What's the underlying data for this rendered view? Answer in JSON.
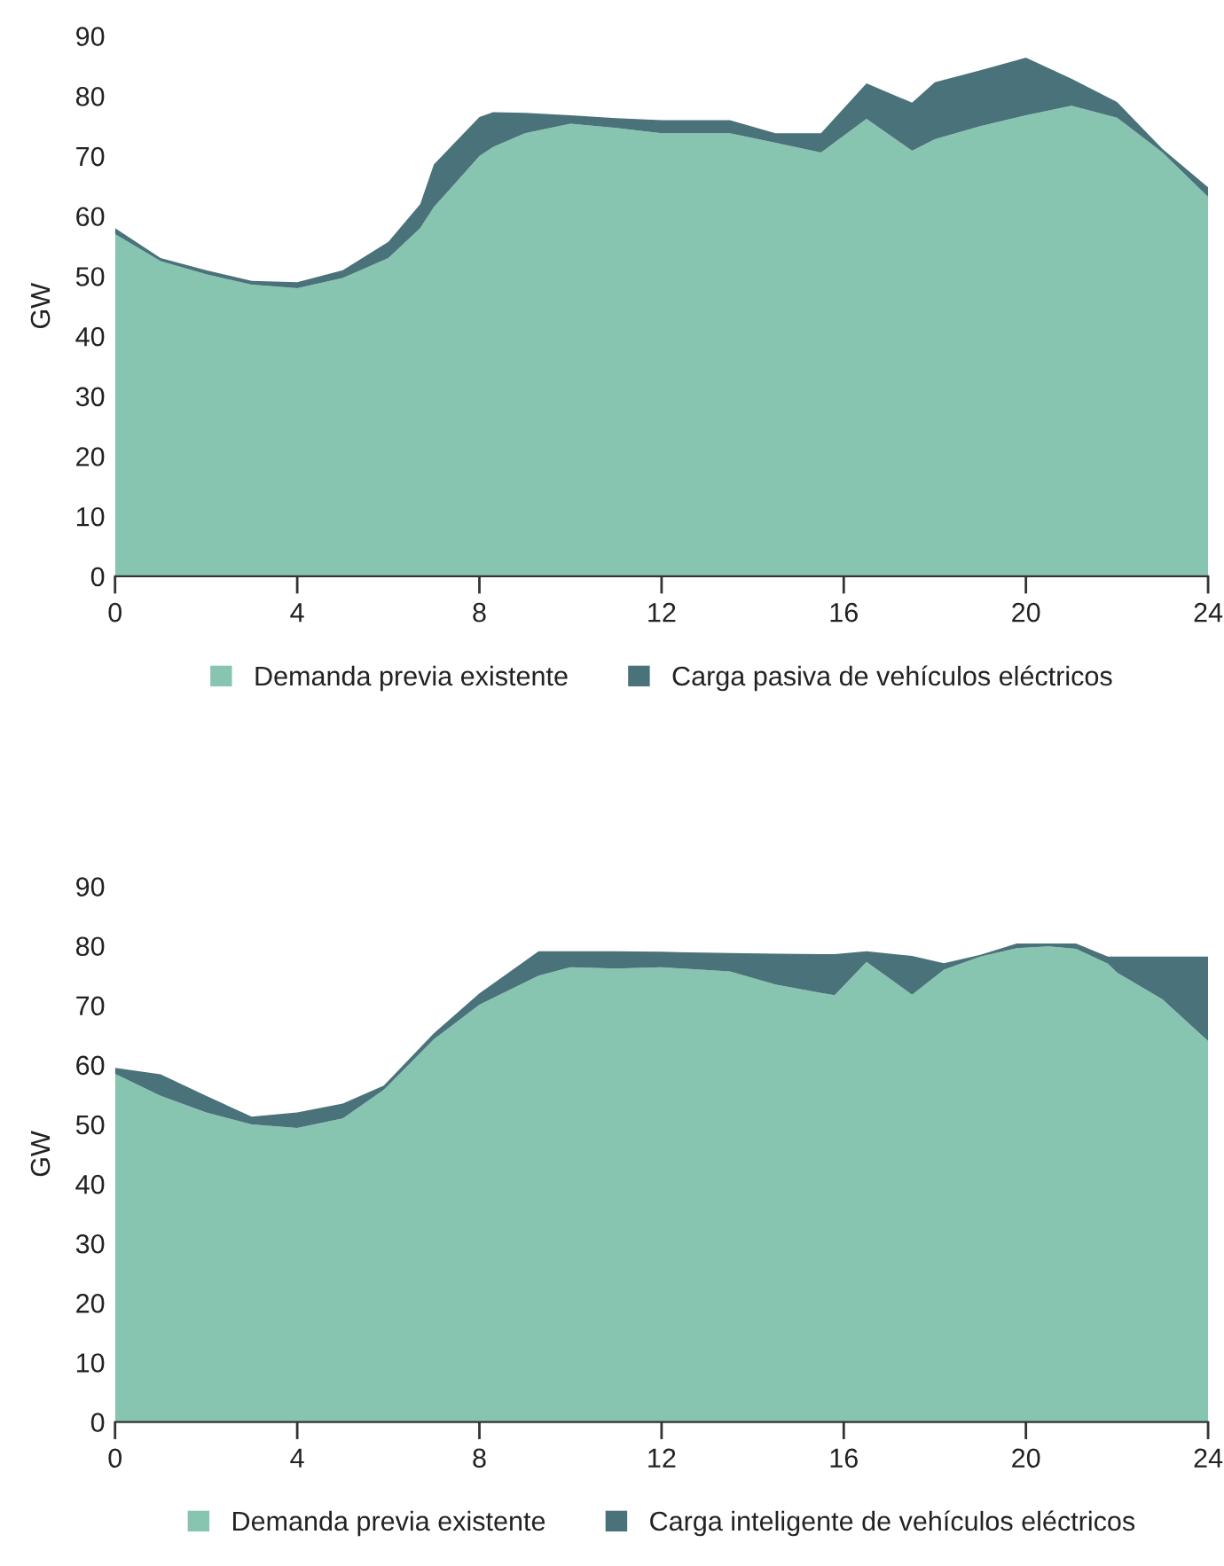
{
  "chart_data": [
    {
      "type": "area",
      "stacked": true,
      "ylabel": "GW",
      "xlim": [
        0,
        24
      ],
      "xticks": [
        0,
        4,
        8,
        12,
        16,
        20,
        24
      ],
      "ylim": [
        0,
        90
      ],
      "yticks": [
        0,
        10,
        20,
        30,
        40,
        50,
        60,
        70,
        80,
        90
      ],
      "grid": false,
      "legend": "bottom",
      "x": [
        0,
        1,
        2,
        3,
        4,
        5,
        6,
        6.7,
        7,
        8,
        8.3,
        9,
        10,
        11,
        12,
        13,
        13.5,
        14.5,
        15.5,
        16.5,
        17.5,
        18,
        19,
        20,
        21,
        22,
        23,
        24
      ],
      "series": [
        {
          "name": "Demanda previa existente",
          "color": "#88c5b0",
          "values": [
            57,
            52.5,
            50.3,
            48.6,
            48,
            49.7,
            53,
            58,
            61.5,
            70,
            71.5,
            73.8,
            75.4,
            74.7,
            73.8,
            73.8,
            73.8,
            72.2,
            70.6,
            76.2,
            70.9,
            72.8,
            75,
            76.8,
            78.4,
            76.4,
            70.6,
            63.2
          ]
        },
        {
          "name": "Carga pasiva de vehículos eléctricos",
          "color": "#4a727a",
          "values": [
            1,
            0.5,
            0.7,
            0.6,
            1,
            1.3,
            2.7,
            4,
            7.1,
            6.5,
            5.8,
            3.4,
            1.4,
            1.6,
            2.2,
            2.2,
            2.2,
            1.6,
            3.2,
            5.9,
            8,
            9.5,
            9.3,
            9.6,
            4.5,
            2.6,
            0.6,
            1.6
          ]
        }
      ]
    },
    {
      "type": "area",
      "stacked": true,
      "ylabel": "GW",
      "xlim": [
        0,
        24
      ],
      "xticks": [
        0,
        4,
        8,
        12,
        16,
        20,
        24
      ],
      "ylim": [
        0,
        90
      ],
      "yticks": [
        0,
        10,
        20,
        30,
        40,
        50,
        60,
        70,
        80,
        90
      ],
      "grid": false,
      "legend": "bottom",
      "x": [
        0,
        1,
        2,
        3,
        4,
        5,
        5.9,
        7,
        8,
        9.3,
        10,
        11,
        12,
        13.5,
        14.5,
        15.5,
        15.8,
        16.5,
        17.5,
        18.2,
        19,
        19.8,
        20.5,
        21.1,
        21.8,
        22,
        23,
        24
      ],
      "series": [
        {
          "name": "Demanda previa existente",
          "color": "#88c5b0",
          "values": [
            58.5,
            54.8,
            52,
            50,
            49.4,
            51,
            55.8,
            64.3,
            70.1,
            75,
            76.4,
            76.2,
            76.4,
            75.7,
            73.5,
            72.1,
            71.7,
            77.3,
            71.8,
            76,
            78.2,
            79.6,
            79.9,
            79.5,
            77,
            75.5,
            71,
            64
          ]
        },
        {
          "name": "Carga inteligente de vehículos eléctricos",
          "color": "#4a727a",
          "values": [
            1.0,
            3.6,
            2.8,
            1.3,
            2.6,
            2.5,
            0.7,
            1.0,
            1.9,
            4.1,
            2.7,
            2.9,
            2.6,
            3.1,
            5.2,
            6.5,
            6.9,
            1.8,
            6.5,
            1.1,
            0.3,
            0.8,
            0.5,
            0.9,
            1.2,
            2.7,
            7.2,
            14.2
          ]
        }
      ]
    }
  ]
}
